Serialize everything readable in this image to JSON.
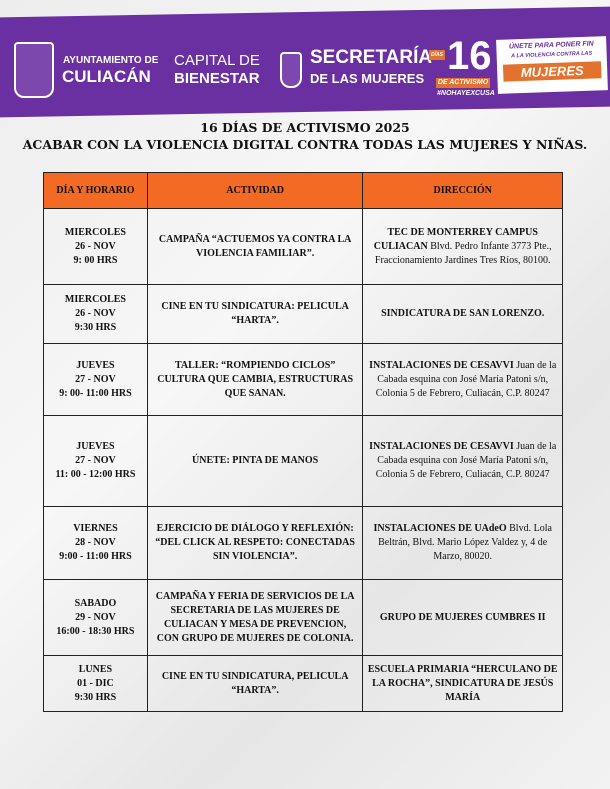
{
  "header": {
    "org1_line1": "AYUNTAMIENTO DE",
    "org1_line2": "CULIACÁN",
    "slogan_line1": "CAPITAL DE",
    "slogan_line2": "BIENESTAR",
    "org2_line1": "SECRETARÍA",
    "org2_line2": "DE LAS MUJERES",
    "badge_number": "16",
    "badge_dias": "DÍAS",
    "badge_activismo": "DE ACTIVISMO",
    "badge_hashtag": "#NOHAYEXCUSA",
    "campaign_line1": "ÚNETE PARA PONER FIN",
    "campaign_line2": "A LA VIOLENCIA CONTRA LAS",
    "campaign_line3": "MUJERES",
    "brand_purple": "#6a2fa0",
    "brand_orange": "#f26a23"
  },
  "title": "16 DÍAS DE ACTIVISMO 2025",
  "subtitle": "ACABAR CON LA VIOLENCIA DIGITAL CONTRA TODAS LAS MUJERES Y NIÑAS.",
  "table": {
    "headers": [
      "DÍA Y HORARIO",
      "ACTIVIDAD",
      "DIRECCIÓN"
    ],
    "rows": [
      {
        "day": "MIERCOLES",
        "date": "26 - NOV",
        "time": "9: 00 HRS",
        "activity": "CAMPAÑA “ACTUEMOS YA CONTRA LA VIOLENCIA FAMILIAR”.",
        "address_bold": "TEC DE MONTERREY CAMPUS CULIACAN",
        "address": "Blvd. Pedro Infante 3773 Pte., Fraccionamiento Jardines Tres Ríos, 80100."
      },
      {
        "day": "MIERCOLES",
        "date": "26 - NOV",
        "time": "9:30 HRS",
        "activity": "CINE EN TU SINDICATURA: PELICULA “HARTA”.",
        "address_bold": "SINDICATURA DE SAN LORENZO.",
        "address": ""
      },
      {
        "day": "JUEVES",
        "date": "27 - NOV",
        "time": "9: 00- 11:00 HRS",
        "activity": "TALLER: “ROMPIENDO CICLOS” CULTURA QUE CAMBIA, ESTRUCTURAS QUE SANAN.",
        "address_bold": "INSTALACIONES DE CESAVVI",
        "address": "Juan de la Cabada esquina con José María Patoni s/n, Colonia 5 de Febrero, Culiacán, C.P. 80247"
      },
      {
        "day": "JUEVES",
        "date": "27 - NOV",
        "time": "11: 00 - 12:00 HRS",
        "activity": "ÚNETE: PINTA DE MANOS",
        "address_bold": "INSTALACIONES DE CESAVVI",
        "address": "Juan de la Cabada esquina con José María Patoni s/n, Colonia 5 de Febrero, Culiacán, C.P. 80247"
      },
      {
        "day": "VIERNES",
        "date": "28 - NOV",
        "time": "9:00 - 11:00 HRS",
        "activity": "EJERCICIO DE DIÁLOGO Y REFLEXIÓN: “DEL CLICK AL RESPETO: CONECTADAS SIN VIOLENCIA”.",
        "address_bold": "INSTALACIONES DE UAdeO",
        "address": "Blvd. Lola Beltrán, Blvd. Mario López Valdez y, 4 de Marzo, 80020."
      },
      {
        "day": "SABADO",
        "date": "29 - NOV",
        "time": "16:00 - 18:30 HRS",
        "activity": "CAMPAÑA Y FERIA DE SERVICIOS DE LA SECRETARIA DE LAS MUJERES DE CULIACAN Y MESA DE PREVENCION, CON GRUPO DE MUJERES DE COLONIA.",
        "address_bold": "GRUPO DE MUJERES CUMBRES II",
        "address": ""
      },
      {
        "day": "LUNES",
        "date": "01 - DIC",
        "time": "9:30 HRS",
        "activity": "CINE EN TU SINDICATURA, PELICULA “HARTA”.",
        "address_bold": "ESCUELA PRIMARIA “HERCULANO DE LA ROCHA”, SINDICATURA DE JESÚS MARÍA",
        "address": ""
      }
    ]
  }
}
